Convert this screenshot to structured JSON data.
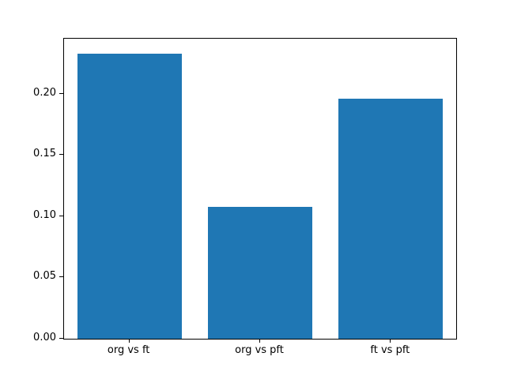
{
  "figure": {
    "background_color": "#ffffff",
    "axes_color": "#000000"
  },
  "chart_data": {
    "type": "bar",
    "title": "",
    "xlabel": "",
    "ylabel": "",
    "categories": [
      "org vs ft",
      "org vs pft",
      "ft vs pft"
    ],
    "values": [
      0.233,
      0.108,
      0.196
    ],
    "bar_color": "#1f77b4",
    "bar_width_fraction": 0.8,
    "ylim": [
      0,
      0.245
    ],
    "yticks": [
      0.0,
      0.05,
      0.1,
      0.15,
      0.2
    ],
    "ytick_decimals": 2,
    "grid": false,
    "legend": null
  }
}
